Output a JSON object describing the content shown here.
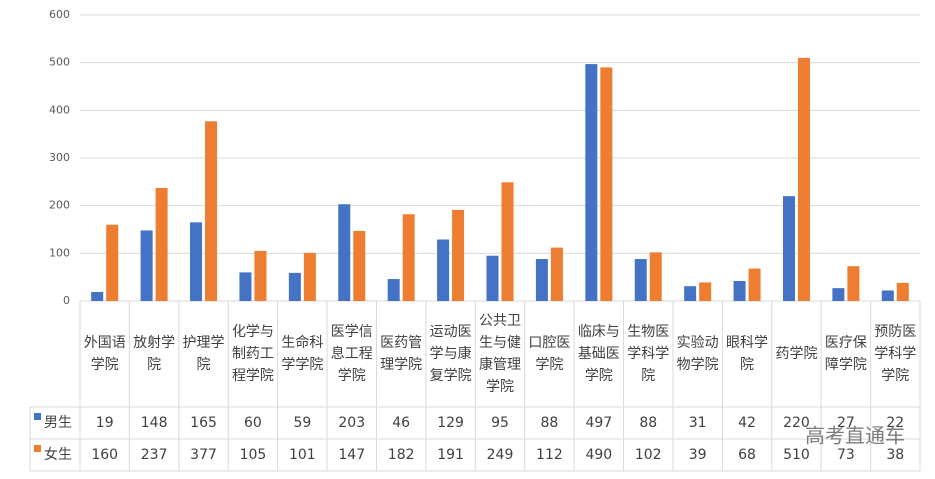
{
  "chart_data": {
    "type": "bar",
    "categories": [
      "外国语学院",
      "放射学院",
      "护理学院",
      "化学与制药工程学院",
      "生命科学学院",
      "医学信息工程学院",
      "医药管理学院",
      "运动医学与康复学院",
      "公共卫生与健康管理学院",
      "口腔医学院",
      "临床与基础医学院",
      "生物医学科学院",
      "实验动物学院",
      "眼科学院",
      "药学院",
      "医疗保障学院",
      "预防医学科学学院"
    ],
    "series": [
      {
        "name": "男生",
        "color": "#4472c4",
        "values": [
          19,
          148,
          165,
          60,
          59,
          203,
          46,
          129,
          95,
          88,
          497,
          88,
          31,
          42,
          220,
          27,
          22
        ]
      },
      {
        "name": "女生",
        "color": "#ed7d31",
        "values": [
          160,
          237,
          377,
          105,
          101,
          147,
          182,
          191,
          249,
          112,
          490,
          102,
          39,
          68,
          510,
          73,
          38
        ]
      }
    ],
    "ylim": [
      0,
      600
    ],
    "yticks": [
      0,
      100,
      200,
      300,
      400,
      500,
      600
    ],
    "grid": true,
    "data_table": true,
    "watermark": "高考直通车"
  }
}
